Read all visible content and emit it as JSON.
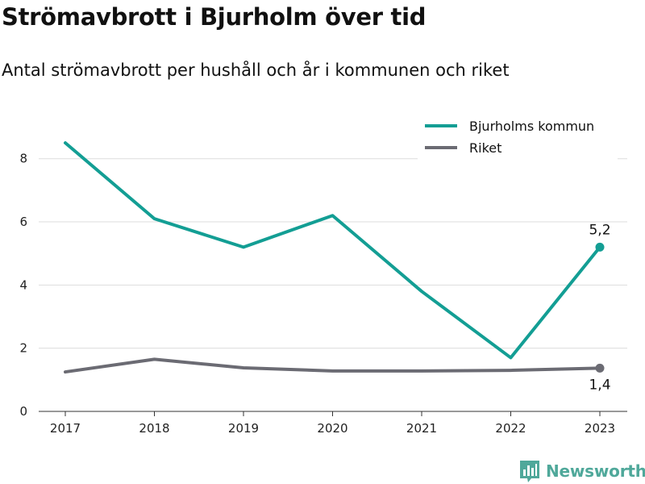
{
  "header": {
    "title": "Strömavbrott i Bjurholm över tid",
    "subtitle": "Antal strömavbrott per hushåll och år i kommunen och riket"
  },
  "brand": {
    "name": "Newsworthy",
    "icon": "bar-chart-logo-icon",
    "color": "#4fa89a"
  },
  "chart_data": {
    "type": "line",
    "x": [
      "2017",
      "2018",
      "2019",
      "2020",
      "2021",
      "2022",
      "2023"
    ],
    "ylim": [
      0,
      9.5
    ],
    "yticks": [
      0,
      2,
      4,
      6,
      8
    ],
    "grid": "horizontal",
    "legend": "top-right",
    "series": [
      {
        "name": "Bjurholms kommun",
        "color": "#139e94",
        "values": [
          8.5,
          6.1,
          5.2,
          6.2,
          3.8,
          1.7,
          5.2
        ],
        "end_label": "5,2"
      },
      {
        "name": "Riket",
        "color": "#6b6b73",
        "values": [
          1.25,
          1.65,
          1.38,
          1.28,
          1.28,
          1.3,
          1.37
        ],
        "end_label": "1,4"
      }
    ]
  }
}
